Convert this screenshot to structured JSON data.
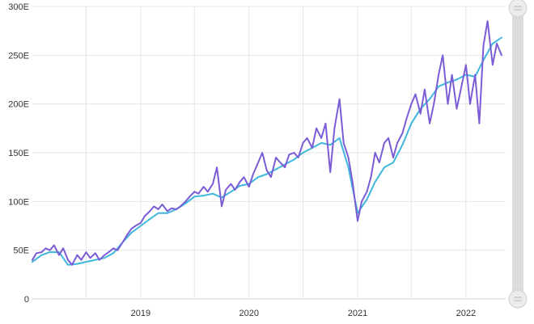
{
  "chart_data": {
    "type": "line",
    "y_ticks": [
      0,
      50,
      100,
      150,
      200,
      250,
      300
    ],
    "y_tick_labels": [
      "0",
      "50E",
      "100E",
      "150E",
      "200E",
      "250E",
      "300E"
    ],
    "ylim": [
      0,
      300
    ],
    "xlim": [
      "2018-01-01",
      "2022-05-15"
    ],
    "x_ticks": [
      "2019-01-01",
      "2020-01-01",
      "2021-01-01",
      "2022-01-01"
    ],
    "x_tick_labels": [
      "2019",
      "2020",
      "2021",
      "2022"
    ],
    "grid": true,
    "series": [
      {
        "color": "#7b5cd6",
        "points": [
          [
            "2018-01-01",
            40
          ],
          [
            "2018-01-15",
            47
          ],
          [
            "2018-02-01",
            48
          ],
          [
            "2018-02-15",
            52
          ],
          [
            "2018-03-01",
            50
          ],
          [
            "2018-03-15",
            55
          ],
          [
            "2018-04-01",
            45
          ],
          [
            "2018-04-15",
            52
          ],
          [
            "2018-05-01",
            40
          ],
          [
            "2018-05-15",
            35
          ],
          [
            "2018-06-01",
            45
          ],
          [
            "2018-06-15",
            40
          ],
          [
            "2018-07-01",
            48
          ],
          [
            "2018-07-15",
            42
          ],
          [
            "2018-08-01",
            47
          ],
          [
            "2018-08-15",
            40
          ],
          [
            "2018-09-01",
            45
          ],
          [
            "2018-09-15",
            48
          ],
          [
            "2018-10-01",
            52
          ],
          [
            "2018-10-15",
            50
          ],
          [
            "2018-11-01",
            58
          ],
          [
            "2018-11-15",
            65
          ],
          [
            "2018-12-01",
            72
          ],
          [
            "2018-12-15",
            75
          ],
          [
            "2019-01-01",
            78
          ],
          [
            "2019-01-15",
            85
          ],
          [
            "2019-02-01",
            90
          ],
          [
            "2019-02-15",
            95
          ],
          [
            "2019-03-01",
            92
          ],
          [
            "2019-03-15",
            97
          ],
          [
            "2019-04-01",
            90
          ],
          [
            "2019-04-15",
            93
          ],
          [
            "2019-05-01",
            92
          ],
          [
            "2019-05-15",
            95
          ],
          [
            "2019-06-01",
            100
          ],
          [
            "2019-06-15",
            105
          ],
          [
            "2019-07-01",
            110
          ],
          [
            "2019-07-15",
            108
          ],
          [
            "2019-08-01",
            115
          ],
          [
            "2019-08-15",
            110
          ],
          [
            "2019-09-01",
            118
          ],
          [
            "2019-09-15",
            135
          ],
          [
            "2019-10-01",
            95
          ],
          [
            "2019-10-15",
            112
          ],
          [
            "2019-11-01",
            118
          ],
          [
            "2019-11-15",
            112
          ],
          [
            "2019-12-01",
            120
          ],
          [
            "2019-12-15",
            125
          ],
          [
            "2020-01-01",
            115
          ],
          [
            "2020-01-15",
            128
          ],
          [
            "2020-02-01",
            140
          ],
          [
            "2020-02-15",
            150
          ],
          [
            "2020-03-01",
            132
          ],
          [
            "2020-03-15",
            125
          ],
          [
            "2020-04-01",
            145
          ],
          [
            "2020-04-15",
            140
          ],
          [
            "2020-05-01",
            135
          ],
          [
            "2020-05-15",
            148
          ],
          [
            "2020-06-01",
            150
          ],
          [
            "2020-06-15",
            145
          ],
          [
            "2020-07-01",
            160
          ],
          [
            "2020-07-15",
            165
          ],
          [
            "2020-08-01",
            155
          ],
          [
            "2020-08-15",
            175
          ],
          [
            "2020-09-01",
            165
          ],
          [
            "2020-09-15",
            180
          ],
          [
            "2020-10-01",
            130
          ],
          [
            "2020-10-15",
            175
          ],
          [
            "2020-11-01",
            205
          ],
          [
            "2020-11-15",
            160
          ],
          [
            "2020-12-01",
            145
          ],
          [
            "2020-12-15",
            120
          ],
          [
            "2021-01-01",
            80
          ],
          [
            "2021-01-15",
            100
          ],
          [
            "2021-02-01",
            110
          ],
          [
            "2021-02-15",
            125
          ],
          [
            "2021-03-01",
            150
          ],
          [
            "2021-03-15",
            140
          ],
          [
            "2021-04-01",
            160
          ],
          [
            "2021-04-15",
            165
          ],
          [
            "2021-05-01",
            145
          ],
          [
            "2021-05-15",
            160
          ],
          [
            "2021-06-01",
            170
          ],
          [
            "2021-06-15",
            185
          ],
          [
            "2021-07-01",
            200
          ],
          [
            "2021-07-15",
            210
          ],
          [
            "2021-08-01",
            190
          ],
          [
            "2021-08-15",
            215
          ],
          [
            "2021-09-01",
            180
          ],
          [
            "2021-09-15",
            200
          ],
          [
            "2021-10-01",
            230
          ],
          [
            "2021-10-15",
            250
          ],
          [
            "2021-11-01",
            200
          ],
          [
            "2021-11-15",
            230
          ],
          [
            "2021-12-01",
            195
          ],
          [
            "2021-12-15",
            215
          ],
          [
            "2022-01-01",
            240
          ],
          [
            "2022-01-15",
            200
          ],
          [
            "2022-02-01",
            230
          ],
          [
            "2022-02-15",
            180
          ],
          [
            "2022-03-01",
            260
          ],
          [
            "2022-03-15",
            285
          ],
          [
            "2022-04-01",
            240
          ],
          [
            "2022-04-15",
            262
          ],
          [
            "2022-05-01",
            250
          ]
        ]
      },
      {
        "color": "#3fb6dc",
        "points": [
          [
            "2018-01-01",
            38
          ],
          [
            "2018-02-01",
            45
          ],
          [
            "2018-03-01",
            48
          ],
          [
            "2018-04-01",
            48
          ],
          [
            "2018-05-01",
            35
          ],
          [
            "2018-06-01",
            36
          ],
          [
            "2018-07-01",
            38
          ],
          [
            "2018-08-01",
            40
          ],
          [
            "2018-09-01",
            42
          ],
          [
            "2018-10-01",
            47
          ],
          [
            "2018-11-01",
            58
          ],
          [
            "2018-12-01",
            68
          ],
          [
            "2019-01-01",
            75
          ],
          [
            "2019-02-01",
            82
          ],
          [
            "2019-03-01",
            88
          ],
          [
            "2019-04-01",
            88
          ],
          [
            "2019-05-01",
            92
          ],
          [
            "2019-06-01",
            98
          ],
          [
            "2019-07-01",
            105
          ],
          [
            "2019-08-01",
            106
          ],
          [
            "2019-09-01",
            108
          ],
          [
            "2019-10-01",
            104
          ],
          [
            "2019-11-01",
            110
          ],
          [
            "2019-12-01",
            116
          ],
          [
            "2020-01-01",
            118
          ],
          [
            "2020-02-01",
            125
          ],
          [
            "2020-03-01",
            128
          ],
          [
            "2020-04-01",
            133
          ],
          [
            "2020-05-01",
            138
          ],
          [
            "2020-06-01",
            143
          ],
          [
            "2020-07-01",
            150
          ],
          [
            "2020-08-01",
            155
          ],
          [
            "2020-09-01",
            160
          ],
          [
            "2020-10-01",
            158
          ],
          [
            "2020-11-01",
            165
          ],
          [
            "2020-12-01",
            135
          ],
          [
            "2021-01-01",
            88
          ],
          [
            "2021-02-01",
            102
          ],
          [
            "2021-03-01",
            120
          ],
          [
            "2021-04-01",
            135
          ],
          [
            "2021-05-01",
            140
          ],
          [
            "2021-06-01",
            158
          ],
          [
            "2021-07-01",
            180
          ],
          [
            "2021-08-01",
            195
          ],
          [
            "2021-09-01",
            205
          ],
          [
            "2021-10-01",
            218
          ],
          [
            "2021-11-01",
            222
          ],
          [
            "2021-12-01",
            225
          ],
          [
            "2022-01-01",
            230
          ],
          [
            "2022-02-01",
            228
          ],
          [
            "2022-03-01",
            245
          ],
          [
            "2022-04-01",
            262
          ],
          [
            "2022-05-01",
            268
          ]
        ]
      }
    ]
  }
}
